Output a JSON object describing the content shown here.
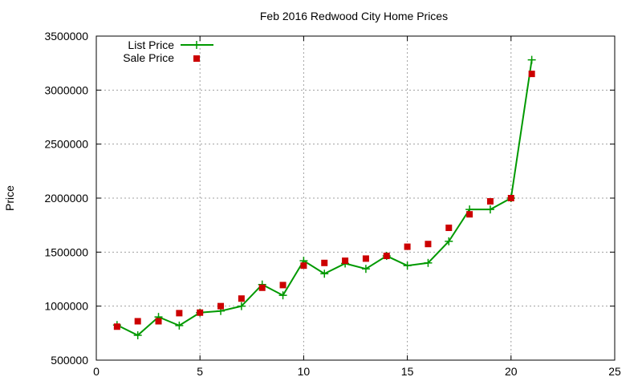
{
  "chart_data": {
    "type": "line",
    "title": "Feb 2016 Redwood City Home Prices",
    "xlabel": "",
    "ylabel": "Price",
    "xlim": [
      0,
      25
    ],
    "ylim": [
      500000,
      3500000
    ],
    "xticks": [
      0,
      5,
      10,
      15,
      20,
      25
    ],
    "yticks": [
      500000,
      1000000,
      1500000,
      2000000,
      2500000,
      3000000,
      3500000
    ],
    "grid": true,
    "legend_position": "top-left",
    "series": [
      {
        "name": "List Price",
        "style": "linespoints",
        "color": "#009900",
        "x": [
          1,
          2,
          3,
          4,
          5,
          6,
          7,
          8,
          9,
          10,
          11,
          12,
          13,
          14,
          15,
          16,
          17,
          18,
          19,
          20,
          21
        ],
        "values": [
          825000,
          730000,
          900000,
          820000,
          940000,
          955000,
          1000000,
          1200000,
          1100000,
          1420000,
          1300000,
          1395000,
          1345000,
          1465000,
          1375000,
          1400000,
          1600000,
          1895000,
          1895000,
          2000000,
          3280000
        ]
      },
      {
        "name": "Sale Price",
        "style": "points",
        "color": "#cc0000",
        "x": [
          1,
          2,
          3,
          4,
          5,
          6,
          7,
          8,
          9,
          10,
          11,
          12,
          13,
          14,
          15,
          16,
          17,
          18,
          19,
          20,
          21
        ],
        "values": [
          810000,
          860000,
          860000,
          935000,
          940000,
          1000000,
          1070000,
          1170000,
          1195000,
          1375000,
          1400000,
          1420000,
          1440000,
          1465000,
          1550000,
          1575000,
          1725000,
          1850000,
          1970000,
          2000000,
          3150000
        ]
      }
    ]
  }
}
